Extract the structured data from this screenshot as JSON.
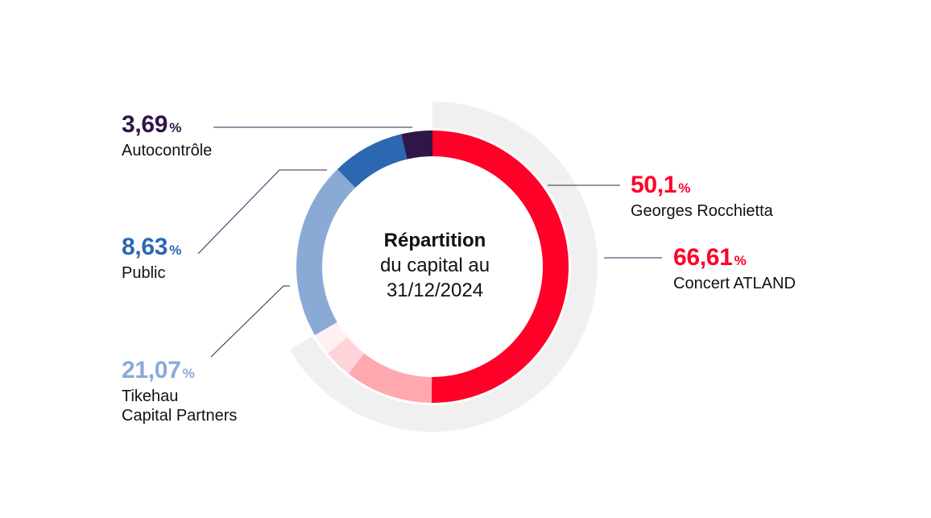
{
  "center": {
    "title": "Répartition",
    "line2": "du capital au",
    "line3": "31/12/2024"
  },
  "chart_data": {
    "type": "pie",
    "inner_ring": [
      {
        "name": "Georges Rocchietta",
        "value": 50.1,
        "color": "#ff0028"
      },
      {
        "name": "",
        "value": 10.5,
        "color": "#ffa8b0"
      },
      {
        "name": "",
        "value": 3.4,
        "color": "#ffd4d8"
      },
      {
        "name": "",
        "value": 2.61,
        "color": "#fff0f1"
      },
      {
        "name": "Tikehau Capital Partners",
        "value": 21.07,
        "color": "#8aaad6"
      },
      {
        "name": "Public",
        "value": 8.63,
        "color": "#2b68b1"
      },
      {
        "name": "Autocontrôle",
        "value": 3.69,
        "color": "#301549"
      }
    ],
    "outer_ring": [
      {
        "name": "Concert ATLAND",
        "value": 66.61,
        "color": "#f0f0f0"
      }
    ]
  },
  "labels": [
    {
      "id": "concert",
      "pct": "66,61",
      "pct_sign": "%",
      "name": "Concert ATLAND",
      "color": "#ff0028"
    },
    {
      "id": "georges",
      "pct": "50,1",
      "pct_sign": "%",
      "name": "Georges Rocchietta",
      "color": "#ff0028"
    },
    {
      "id": "autocontrole",
      "pct": "3,69",
      "pct_sign": "%",
      "name": "Autocontrôle",
      "color": "#301549"
    },
    {
      "id": "public",
      "pct": "8,63",
      "pct_sign": "%",
      "name": "Public",
      "color": "#2b68b1"
    },
    {
      "id": "tikehau",
      "pct": "21,07",
      "pct_sign": "%",
      "name_line1": "Tikehau",
      "name_line2": "Capital Partners",
      "color": "#8aaad6"
    }
  ],
  "leader_color": "#3a2352"
}
